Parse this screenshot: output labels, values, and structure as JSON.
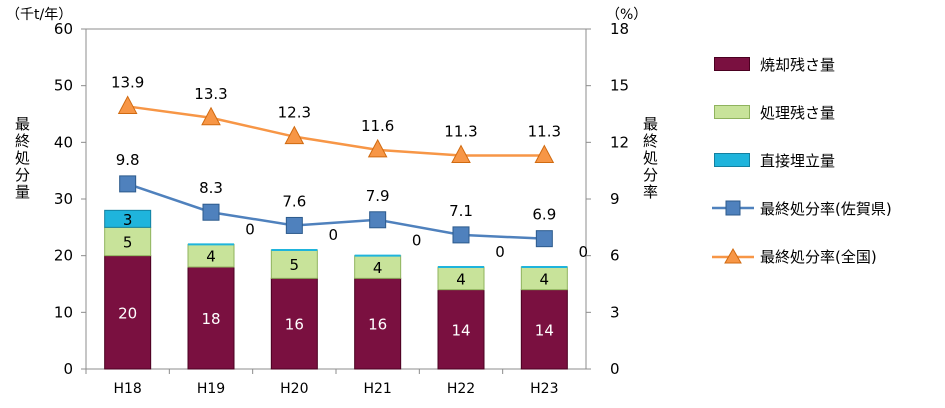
{
  "chart_data": {
    "type": "bar",
    "categories": [
      "H18",
      "H19",
      "H20",
      "H21",
      "H22",
      "H23"
    ],
    "left_axis": {
      "unit": "（千t/年）",
      "label": "最終処分量",
      "ylim": [
        0,
        60
      ],
      "ticks": [
        0,
        10,
        20,
        30,
        40,
        50,
        60
      ]
    },
    "right_axis": {
      "unit": "（%）",
      "label": "最終処分率",
      "ylim": [
        0,
        18
      ],
      "ticks": [
        0,
        3,
        6,
        9,
        12,
        15,
        18
      ]
    },
    "stacked_series": [
      {
        "name": "焼却残さ量",
        "values": [
          20,
          18,
          16,
          16,
          14,
          14
        ],
        "labels": [
          "20",
          "18",
          "16",
          "16",
          "14",
          "14"
        ],
        "color": "#7a1040"
      },
      {
        "name": "処理残さ量",
        "values": [
          5,
          4,
          5,
          4,
          4,
          4
        ],
        "labels": [
          "5",
          "4",
          "5",
          "4",
          "4",
          "4"
        ],
        "color": "#c8e39a"
      },
      {
        "name": "直接埋立量",
        "values": [
          3,
          0,
          0,
          0,
          0,
          0
        ],
        "labels": [
          "3",
          "0",
          "0",
          "0",
          "0",
          "0"
        ],
        "color": "#1fb4dc"
      }
    ],
    "line_series": [
      {
        "name": "最終処分率(佐賀県)",
        "values": [
          9.8,
          8.3,
          7.6,
          7.9,
          7.1,
          6.9
        ],
        "labels": [
          "9.8",
          "8.3",
          "7.6",
          "7.9",
          "7.1",
          "6.9"
        ],
        "color": "#4f81bd",
        "marker": "square"
      },
      {
        "name": "最終処分率(全国)",
        "values": [
          13.9,
          13.3,
          12.3,
          11.6,
          11.3,
          11.3
        ],
        "labels": [
          "13.9",
          "13.3",
          "12.3",
          "11.6",
          "11.3",
          "11.3"
        ],
        "color": "#f79646",
        "marker": "triangle"
      }
    ],
    "legend_position": "right",
    "grid": false
  },
  "icons": [
    "square-marker-icon",
    "triangle-marker-icon"
  ]
}
